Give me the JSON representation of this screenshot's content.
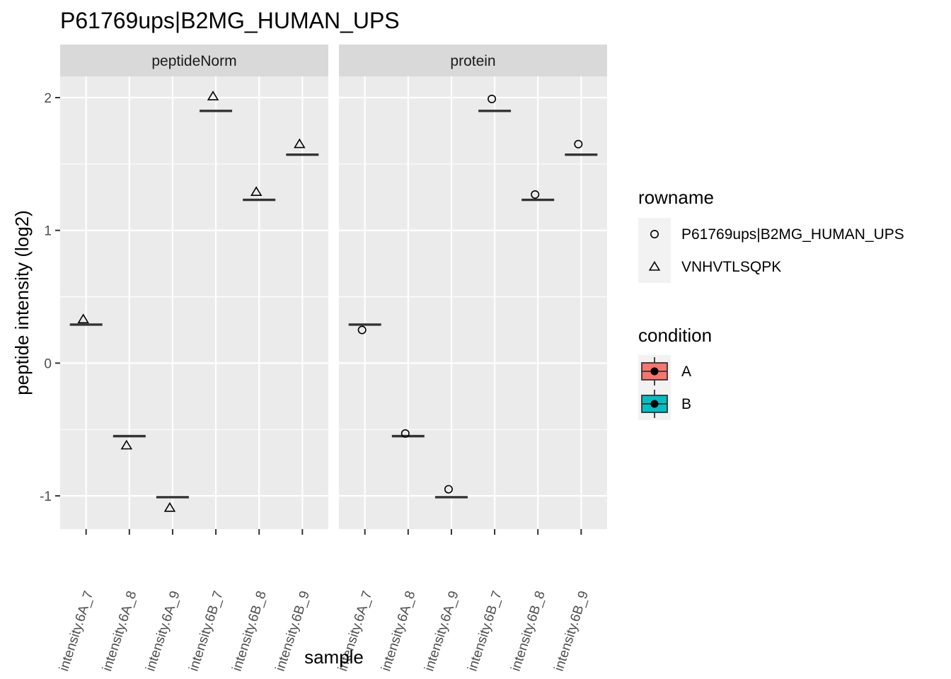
{
  "chart_data": {
    "type": "boxplot",
    "title": "P61769ups|B2MG_HUMAN_UPS",
    "xlabel": "sample",
    "ylabel": "peptide intensity (log2)",
    "ylim": [
      -1.25,
      2.16
    ],
    "yticks": [
      -1,
      0,
      1,
      2
    ],
    "ytick_labels": [
      "-1",
      "0",
      "1",
      "2"
    ],
    "grid": true,
    "categories": [
      "intensity.6A_7",
      "intensity.6A_8",
      "intensity.6A_9",
      "intensity.6B_7",
      "intensity.6B_8",
      "intensity.6B_9"
    ],
    "category_condition": [
      "A",
      "A",
      "A",
      "B",
      "B",
      "B"
    ],
    "panels": [
      {
        "name": "peptideNorm",
        "box_values": [
          0.29,
          -0.55,
          -1.01,
          1.9,
          1.23,
          1.57
        ],
        "points": [
          {
            "series": "VNHVTLSQPK",
            "values": [
              0.33,
              -0.62,
              -1.09,
              2.01,
              1.29,
              1.65
            ]
          }
        ]
      },
      {
        "name": "protein",
        "box_values": [
          0.29,
          -0.55,
          -1.01,
          1.9,
          1.23,
          1.57
        ],
        "points": [
          {
            "series": "P61769ups|B2MG_HUMAN_UPS",
            "values": [
              0.25,
              -0.53,
              -0.95,
              1.99,
              1.27,
              1.65
            ]
          }
        ]
      }
    ],
    "legends": [
      {
        "title": "rowname",
        "entries": [
          {
            "label": "P61769ups|B2MG_HUMAN_UPS",
            "shape": "circle"
          },
          {
            "label": "VNHVTLSQPK",
            "shape": "triangle"
          }
        ]
      },
      {
        "title": "condition",
        "entries": [
          {
            "label": "A",
            "color": "#F8766D"
          },
          {
            "label": "B",
            "color": "#00BFC4"
          }
        ]
      }
    ],
    "legend_position": "right",
    "colors": {
      "panel_bg": "#EBEBEB",
      "grid_major": "#FFFFFF",
      "strip_bg": "#D9D9D9",
      "box_line": "#333333",
      "legend_key_bg": "#F2F2F2"
    }
  }
}
